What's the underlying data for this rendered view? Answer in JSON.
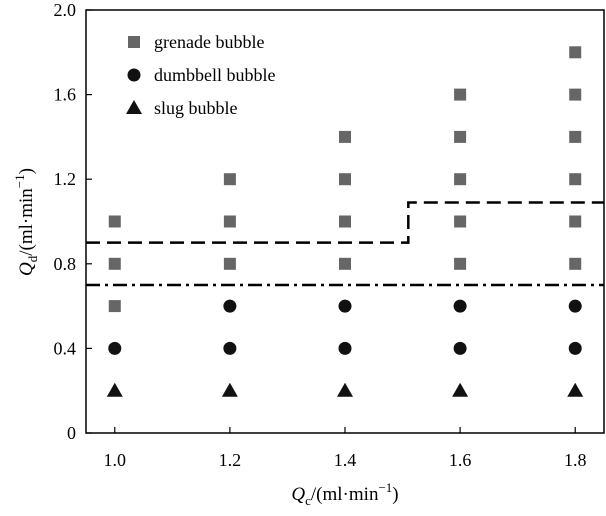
{
  "chart_data": {
    "type": "scatter",
    "xlabel": {
      "main": "Q",
      "sub": "c",
      "unit": "/(ml·min",
      "exp": "−1",
      "close": ")"
    },
    "ylabel": {
      "main": "Q",
      "sub": "d",
      "unit": "/(ml·min",
      "exp": "−1",
      "close": ")"
    },
    "xlim": [
      0.95,
      1.85
    ],
    "ylim": [
      0,
      2.0
    ],
    "x_ticks": [
      "1.0",
      "1.2",
      "1.4",
      "1.6",
      "1.8"
    ],
    "y_ticks": [
      "0",
      "0.4",
      "0.8",
      "1.2",
      "1.6",
      "2.0"
    ],
    "legend_position": "top-left",
    "grid": false,
    "series": [
      {
        "name": "grenade bubble",
        "marker": "square",
        "color": "#666666",
        "points": [
          [
            1.0,
            0.6
          ],
          [
            1.0,
            0.8
          ],
          [
            1.0,
            1.0
          ],
          [
            1.2,
            0.8
          ],
          [
            1.2,
            1.0
          ],
          [
            1.2,
            1.2
          ],
          [
            1.4,
            0.8
          ],
          [
            1.4,
            1.0
          ],
          [
            1.4,
            1.2
          ],
          [
            1.4,
            1.4
          ],
          [
            1.6,
            0.8
          ],
          [
            1.6,
            1.0
          ],
          [
            1.6,
            1.2
          ],
          [
            1.6,
            1.4
          ],
          [
            1.6,
            1.6
          ],
          [
            1.8,
            0.8
          ],
          [
            1.8,
            1.0
          ],
          [
            1.8,
            1.2
          ],
          [
            1.8,
            1.4
          ],
          [
            1.8,
            1.6
          ],
          [
            1.8,
            1.8
          ]
        ]
      },
      {
        "name": "dumbbell bubble",
        "marker": "circle",
        "color": "#111111",
        "points": [
          [
            1.0,
            0.4
          ],
          [
            1.2,
            0.4
          ],
          [
            1.2,
            0.6
          ],
          [
            1.4,
            0.4
          ],
          [
            1.4,
            0.6
          ],
          [
            1.6,
            0.4
          ],
          [
            1.6,
            0.6
          ],
          [
            1.8,
            0.4
          ],
          [
            1.8,
            0.6
          ]
        ]
      },
      {
        "name": "slug bubble",
        "marker": "triangle",
        "color": "#111111",
        "points": [
          [
            1.0,
            0.2
          ],
          [
            1.2,
            0.2
          ],
          [
            1.4,
            0.2
          ],
          [
            1.6,
            0.2
          ],
          [
            1.8,
            0.2
          ]
        ]
      }
    ],
    "boundaries": [
      {
        "style": "dashed",
        "points": [
          [
            0.95,
            0.9
          ],
          [
            1.51,
            0.9
          ],
          [
            1.51,
            1.09
          ],
          [
            1.85,
            1.09
          ]
        ]
      },
      {
        "style": "dash-dot",
        "points": [
          [
            0.95,
            0.7
          ],
          [
            1.85,
            0.7
          ]
        ]
      }
    ]
  }
}
